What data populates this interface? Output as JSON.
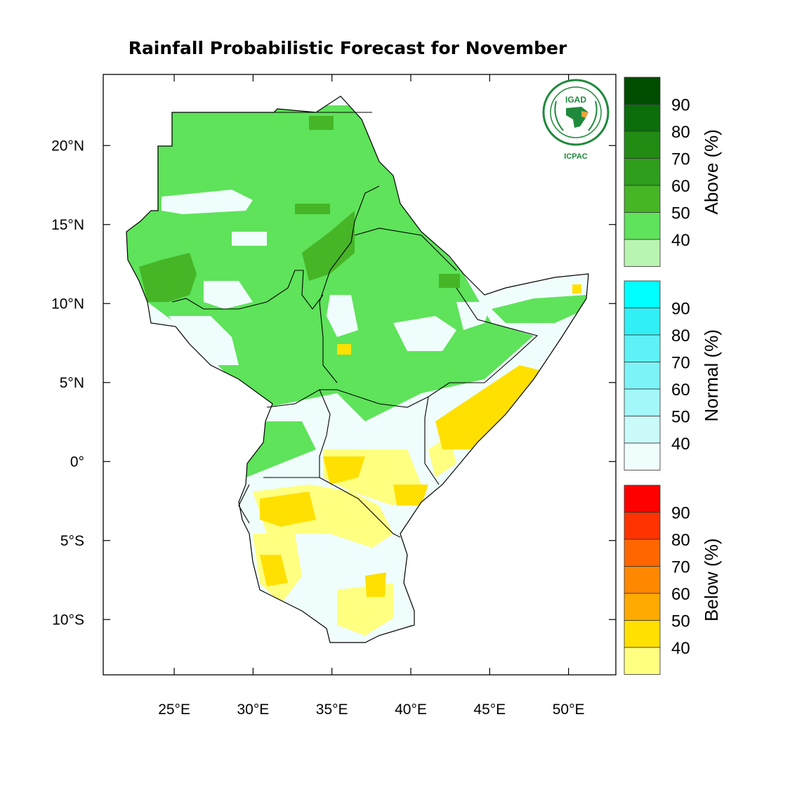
{
  "title": "Rainfall Probabilistic Forecast for November",
  "logo": {
    "text": "IGAD",
    "subtext": "ICPAC",
    "icon": "igad-africa-emblem"
  },
  "axes": {
    "x_ticks": [
      {
        "value": 25,
        "label": "25°E"
      },
      {
        "value": 30,
        "label": "30°E"
      },
      {
        "value": 35,
        "label": "35°E"
      },
      {
        "value": 40,
        "label": "40°E"
      },
      {
        "value": 45,
        "label": "45°E"
      },
      {
        "value": 50,
        "label": "50°E"
      }
    ],
    "y_ticks": [
      {
        "value": 20,
        "label": "20°N"
      },
      {
        "value": 15,
        "label": "15°N"
      },
      {
        "value": 10,
        "label": "10°N"
      },
      {
        "value": 5,
        "label": "5°N"
      },
      {
        "value": 0,
        "label": "0°"
      },
      {
        "value": -5,
        "label": "5°S"
      },
      {
        "value": -10,
        "label": "10°S"
      }
    ],
    "lon_range": [
      20.5,
      53
    ],
    "lat_range": [
      -13.5,
      24.5
    ]
  },
  "legends": [
    {
      "name": "above",
      "title": "Above (%)",
      "labels": [
        "90",
        "80",
        "70",
        "60",
        "50",
        "40"
      ],
      "colors": [
        "#004d00",
        "#0b6e0b",
        "#228b14",
        "#2e9e1c",
        "#46b526",
        "#5ee35a",
        "#b8f5b0"
      ]
    },
    {
      "name": "normal",
      "title": "Normal (%)",
      "labels": [
        "90",
        "80",
        "70",
        "60",
        "50",
        "40"
      ],
      "colors": [
        "#00ffff",
        "#30f0f5",
        "#5ef2f6",
        "#7cf3f7",
        "#a4f7f8",
        "#cbfafa",
        "#f0fdfd"
      ]
    },
    {
      "name": "below",
      "title": "Below (%)",
      "labels": [
        "90",
        "80",
        "70",
        "60",
        "50",
        "40"
      ],
      "colors": [
        "#ff0000",
        "#ff3300",
        "#ff6600",
        "#ff8800",
        "#ffaa00",
        "#ffe000",
        "#ffff80"
      ]
    }
  ]
}
